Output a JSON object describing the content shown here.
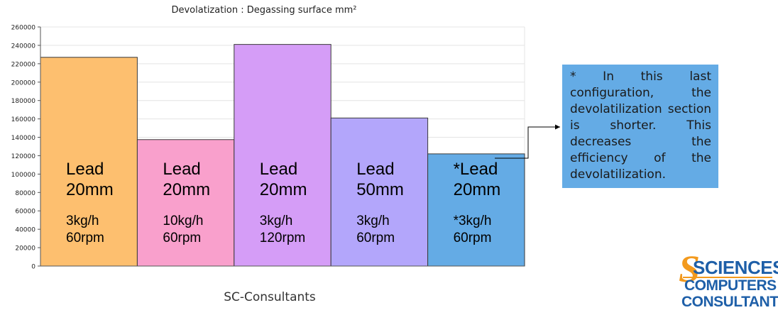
{
  "chart_data": {
    "type": "bar",
    "title": "Devolatization : Degassing surface mm²",
    "categories": [
      "Lead 20mm",
      "Lead 20mm",
      "Lead 20mm",
      "Lead 50mm",
      "*Lead 20mm"
    ],
    "values": [
      227000,
      137500,
      241000,
      161000,
      122000
    ],
    "bar_labels": [
      {
        "lead": "Lead",
        "size": "20mm",
        "rate": "3kg/h",
        "speed": "60rpm"
      },
      {
        "lead": "Lead",
        "size": "20mm",
        "rate": "10kg/h",
        "speed": "60rpm"
      },
      {
        "lead": "Lead",
        "size": "20mm",
        "rate": "3kg/h",
        "speed": "120rpm"
      },
      {
        "lead": "Lead",
        "size": "50mm",
        "rate": "3kg/h",
        "speed": "60rpm"
      },
      {
        "lead": "*Lead",
        "size": "20mm",
        "rate": "*3kg/h",
        "speed": "60rpm"
      }
    ],
    "bar_colors": [
      "#fdbf6f",
      "#f9a0cc",
      "#d59df7",
      "#b3a6fb",
      "#64abe5"
    ],
    "ylim": [
      0,
      260000
    ],
    "yticks": [
      0,
      20000,
      40000,
      60000,
      80000,
      100000,
      120000,
      140000,
      160000,
      180000,
      200000,
      220000,
      240000,
      260000
    ],
    "grid": true,
    "xlabel": "",
    "ylabel": ""
  },
  "note": {
    "text": "* In this last configuration, the devolatilization section is shorter. This decreases the efficiency of the devolatilization."
  },
  "footer": {
    "text": "SC-Consultants"
  },
  "logo": {
    "line1": "SCIENCES",
    "line2": "COMPUTERS",
    "line3": "CONSULTANTS"
  }
}
